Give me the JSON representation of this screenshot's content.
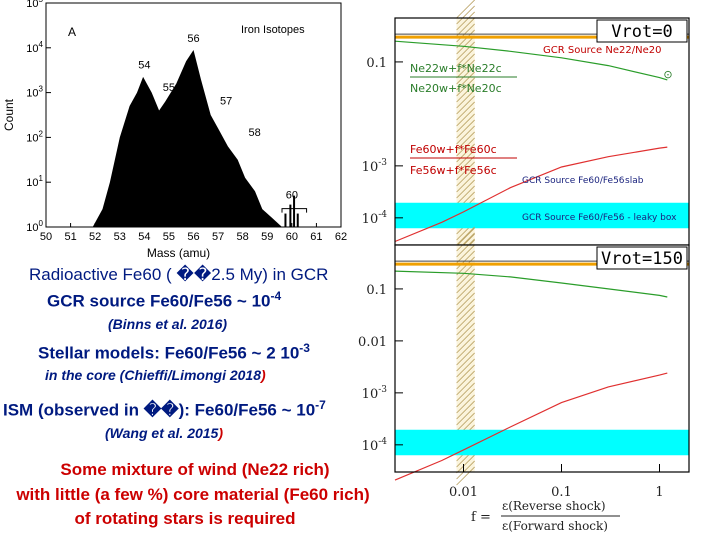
{
  "chart_data": [
    {
      "type": "bar",
      "panel_label": "A",
      "title": "Iron Isotopes",
      "xlabel": "Mass (amu)",
      "ylabel": "Count",
      "xlim": [
        50,
        62
      ],
      "ylim_log10": [
        0,
        5
      ],
      "x_ticks": [
        "50",
        "51",
        "52",
        "53",
        "54",
        "55",
        "56",
        "57",
        "58",
        "59",
        "60",
        "61",
        "62"
      ],
      "y_ticks": [
        {
          "base": "10",
          "exp": "0"
        },
        {
          "base": "10",
          "exp": "1"
        },
        {
          "base": "10",
          "exp": "2"
        },
        {
          "base": "10",
          "exp": "3"
        },
        {
          "base": "10",
          "exp": "4"
        },
        {
          "base": "10",
          "exp": "5"
        }
      ],
      "peak_labels": [
        {
          "mass": 54,
          "label": "54",
          "log_count": 3.4
        },
        {
          "mass": 55,
          "label": "55",
          "log_count": 2.9
        },
        {
          "mass": 56,
          "label": "56",
          "log_count": 4.0
        },
        {
          "mass": 57,
          "label": "57",
          "log_count": 2.6
        },
        {
          "mass": 58,
          "label": "58",
          "log_count": 1.9
        },
        {
          "mass": 60,
          "label": "60",
          "log_count": 0.5
        }
      ],
      "profile": [
        [
          51.9,
          0
        ],
        [
          52.3,
          0.4
        ],
        [
          52.6,
          1.0
        ],
        [
          53.0,
          2.0
        ],
        [
          53.4,
          2.7
        ],
        [
          53.7,
          3.0
        ],
        [
          53.95,
          3.35
        ],
        [
          54.3,
          3.0
        ],
        [
          54.6,
          2.6
        ],
        [
          54.85,
          2.8
        ],
        [
          55.3,
          3.2
        ],
        [
          55.7,
          3.7
        ],
        [
          56.0,
          3.95
        ],
        [
          56.3,
          3.3
        ],
        [
          56.7,
          2.5
        ],
        [
          57.0,
          2.2
        ],
        [
          57.4,
          1.8
        ],
        [
          57.8,
          1.5
        ],
        [
          58.1,
          1.1
        ],
        [
          58.5,
          0.8
        ],
        [
          58.8,
          0.4
        ],
        [
          59.2,
          0.2
        ],
        [
          59.6,
          0
        ]
      ],
      "sparse_bars": [
        [
          59.7,
          0.3
        ],
        [
          59.9,
          0.5
        ],
        [
          60.05,
          0.7
        ],
        [
          60.2,
          0.3
        ]
      ]
    },
    {
      "type": "line",
      "title": "Vrot=0",
      "x_scale": "log",
      "xlim": [
        0.002,
        2
      ],
      "y_scale": "log",
      "ylim": [
        3e-05,
        0.7
      ],
      "y_ticks": [
        "0.1",
        "10^-3",
        "10^-4"
      ],
      "ytick_values": [
        0.1,
        0.001,
        0.0001
      ],
      "band_x": [
        0.0085,
        0.013
      ],
      "cyan_band_y": [
        6.3e-05,
        0.000195
      ],
      "reference_line_y": 0.3,
      "series": [
        {
          "name": "Ne22 ratio",
          "color": "#2a9d2a",
          "x": [
            0.002,
            0.01,
            0.03,
            0.1,
            0.3,
            1,
            1.2
          ],
          "y": [
            0.25,
            0.2,
            0.16,
            0.12,
            0.085,
            0.05,
            0.045
          ]
        },
        {
          "name": "Fe60 ratio",
          "color": "#e03030",
          "x": [
            0.002,
            0.006,
            0.01,
            0.03,
            0.1,
            0.3,
            1,
            1.2
          ],
          "y": [
            3.5e-05,
            8.2e-05,
            0.00013,
            0.00038,
            0.00095,
            0.0015,
            0.0022,
            0.0023
          ]
        }
      ],
      "annotations": {
        "gcr_ne": "GCR Source Ne22/Ne20",
        "ne_num": "Ne22w+f*Ne22c",
        "ne_den": "Ne20w+f*Ne20c",
        "fe_num": "Fe60w+f*Fe60c",
        "fe_den": "Fe56w+f*Fe56c",
        "gcr_slab": "GCR Source Fe60/Fe56",
        "slab": "slab",
        "gcr_leaky": "GCR Source Fe60/Fe56 - leaky box",
        "marker": "⊙"
      }
    },
    {
      "type": "line",
      "title": "Vrot=150",
      "x_scale": "log",
      "xlim": [
        0.002,
        2
      ],
      "y_scale": "log",
      "ylim": [
        3e-05,
        0.7
      ],
      "y_ticks": [
        "0.1",
        "0.01",
        "10^-3",
        "10^-4"
      ],
      "ytick_values": [
        0.1,
        0.01,
        0.001,
        0.0001
      ],
      "x_ticks": [
        "0.01",
        "0.1",
        "1"
      ],
      "xtick_values": [
        0.01,
        0.1,
        1
      ],
      "band_x": [
        0.0085,
        0.013
      ],
      "cyan_band_y": [
        6.3e-05,
        0.000195
      ],
      "reference_line_y": 0.3,
      "series": [
        {
          "name": "Ne22 ratio",
          "color": "#2a9d2a",
          "x": [
            0.002,
            0.01,
            0.03,
            0.1,
            0.3,
            1,
            1.2
          ],
          "y": [
            0.22,
            0.2,
            0.17,
            0.13,
            0.1,
            0.075,
            0.07
          ]
        },
        {
          "name": "Fe60 ratio",
          "color": "#e03030",
          "x": [
            0.002,
            0.006,
            0.01,
            0.03,
            0.1,
            0.3,
            1,
            1.2
          ],
          "y": [
            2.1e-05,
            5e-05,
            8e-05,
            0.00022,
            0.00065,
            0.0013,
            0.0022,
            0.0024
          ]
        }
      ],
      "xlabel_f": "f =",
      "xlabel_num": "ε(Reverse shock)",
      "xlabel_den": "ε(Forward shock)"
    }
  ],
  "text": {
    "line1": "Radioactive Fe60 ( ��2.5 My) in GCR",
    "line2_main": "GCR source Fe60/Fe56 ~ 10",
    "line2_exp": "-4",
    "line3": "(Binns et al. 2016)",
    "line4_main": "Stellar models: Fe60/Fe56 ~ 2 10",
    "line4_exp": "-3",
    "line5_main": "in the core (Chieffi/Limongi 2018",
    "line5_paren": ")",
    "line6_main": "ISM (observed in ��): Fe60/Fe56 ~  10",
    "line6_exp": "-7",
    "line7_main": "(Wang et al. 2015",
    "line7_paren": ")",
    "concl1": "Some mixture of wind (Ne22 rich)",
    "concl2": "with little (a few %) core material (Fe60 rich)",
    "concl3": "of rotating stars is required"
  },
  "colors": {
    "navy": "#001a80",
    "red": "#cc0000",
    "orange": "#f0a000",
    "cyan": "#00ffff",
    "band": "#b8a060",
    "annot": "#1a237e"
  }
}
